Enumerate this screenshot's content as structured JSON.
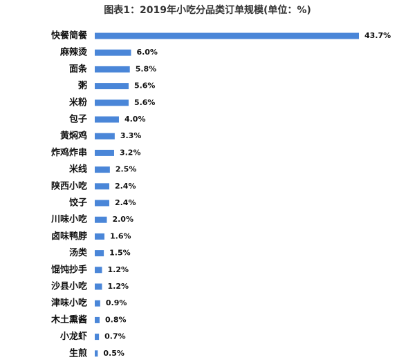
{
  "chart_data": {
    "type": "bar",
    "orientation": "horizontal",
    "title": "图表1：2019年小吃分品类订单规模(单位：%)",
    "categories": [
      "快餐简餐",
      "麻辣烫",
      "面条",
      "粥",
      "米粉",
      "包子",
      "黄焖鸡",
      "炸鸡炸串",
      "米线",
      "陕西小吃",
      "饺子",
      "川味小吃",
      "卤味鸭脖",
      "汤类",
      "馄饨抄手",
      "沙县小吃",
      "津味小吃",
      "木土熏酱",
      "小龙虾",
      "生煎"
    ],
    "values": [
      43.7,
      6.0,
      5.8,
      5.6,
      5.6,
      4.0,
      3.3,
      3.2,
      2.5,
      2.4,
      2.4,
      2.0,
      1.6,
      1.5,
      1.2,
      1.2,
      0.9,
      0.8,
      0.7,
      0.5
    ],
    "value_labels": [
      "43.7%",
      "6.0%",
      "5.8%",
      "5.6%",
      "5.6%",
      "4.0%",
      "3.3%",
      "3.2%",
      "2.5%",
      "2.4%",
      "2.4%",
      "2.0%",
      "1.6%",
      "1.5%",
      "1.2%",
      "1.2%",
      "0.9%",
      "0.8%",
      "0.7%",
      "0.5%"
    ],
    "color": "#4a86d8"
  }
}
